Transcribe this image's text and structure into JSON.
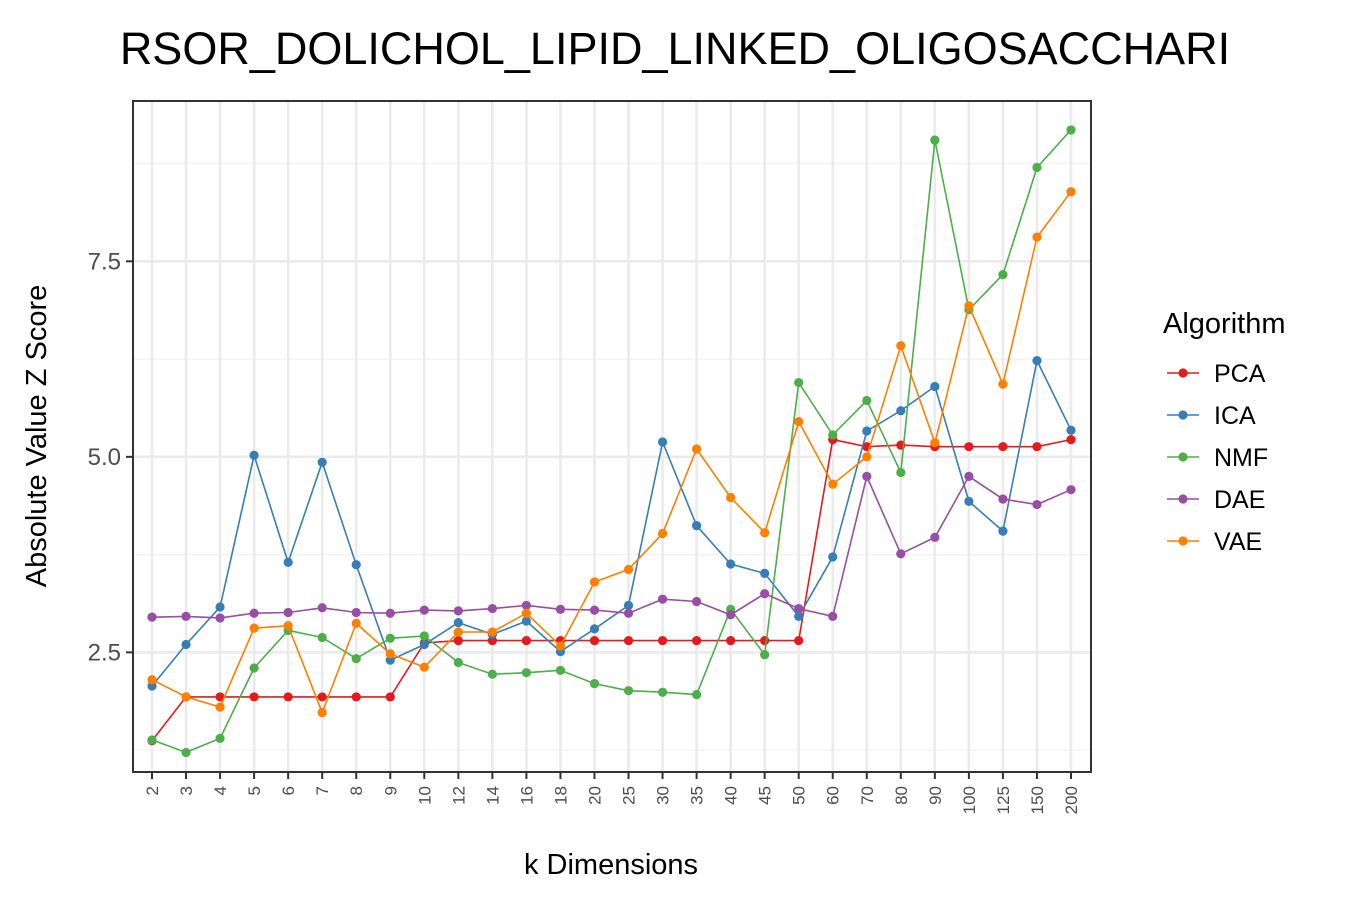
{
  "chart_data": {
    "type": "line",
    "title": "RSOR_DOLICHOL_LIPID_LINKED_OLIGOSACCHARI",
    "xlabel": "k Dimensions",
    "ylabel": "Absolute Value Z Score",
    "categories": [
      "2",
      "3",
      "4",
      "5",
      "6",
      "7",
      "8",
      "9",
      "10",
      "12",
      "14",
      "16",
      "18",
      "20",
      "25",
      "30",
      "35",
      "40",
      "45",
      "50",
      "60",
      "70",
      "80",
      "90",
      "100",
      "125",
      "150",
      "200"
    ],
    "yticks": [
      "2.5",
      "5.0",
      "7.5"
    ],
    "ylim": [
      0.97,
      9.55
    ],
    "grid": true,
    "legend": {
      "title": "Algorithm",
      "position": "right"
    },
    "series": [
      {
        "name": "PCA",
        "color": "#e41a1c",
        "values": [
          1.37,
          1.93,
          1.93,
          1.93,
          1.93,
          1.93,
          1.93,
          1.93,
          2.62,
          2.65,
          2.65,
          2.65,
          2.65,
          2.65,
          2.65,
          2.65,
          2.65,
          2.65,
          2.65,
          2.65,
          5.22,
          5.13,
          5.15,
          5.13,
          5.13,
          5.13,
          5.13,
          5.22
        ]
      },
      {
        "name": "ICA",
        "color": "#377eb8",
        "values": [
          2.07,
          2.6,
          3.08,
          5.02,
          3.65,
          4.93,
          3.62,
          2.4,
          2.6,
          2.88,
          2.73,
          2.9,
          2.51,
          2.8,
          3.1,
          5.19,
          4.12,
          3.63,
          3.51,
          2.96,
          3.72,
          5.33,
          5.59,
          5.9,
          4.43,
          4.05,
          6.23,
          5.34
        ]
      },
      {
        "name": "NMF",
        "color": "#4daf4a",
        "values": [
          1.38,
          1.22,
          1.4,
          2.3,
          2.78,
          2.69,
          2.42,
          2.68,
          2.71,
          2.37,
          2.22,
          2.24,
          2.27,
          2.1,
          2.01,
          1.99,
          1.96,
          3.05,
          2.47,
          5.95,
          5.28,
          5.72,
          4.8,
          9.05,
          6.88,
          7.33,
          8.7,
          9.18
        ]
      },
      {
        "name": "DAE",
        "color": "#984ea3",
        "values": [
          2.95,
          2.96,
          2.94,
          3.0,
          3.01,
          3.07,
          3.01,
          3.0,
          3.04,
          3.03,
          3.06,
          3.1,
          3.05,
          3.04,
          3.0,
          3.18,
          3.15,
          2.98,
          3.25,
          3.06,
          2.96,
          4.75,
          3.76,
          3.97,
          4.75,
          4.46,
          4.39,
          4.58
        ]
      },
      {
        "name": "VAE",
        "color": "#ff7f00",
        "values": [
          2.15,
          1.93,
          1.8,
          2.81,
          2.84,
          1.73,
          2.87,
          2.48,
          2.31,
          2.76,
          2.76,
          3.0,
          2.58,
          3.4,
          3.56,
          4.02,
          5.1,
          4.48,
          4.03,
          5.45,
          4.65,
          5.0,
          6.42,
          5.18,
          6.93,
          5.93,
          7.81,
          8.39
        ]
      }
    ]
  }
}
